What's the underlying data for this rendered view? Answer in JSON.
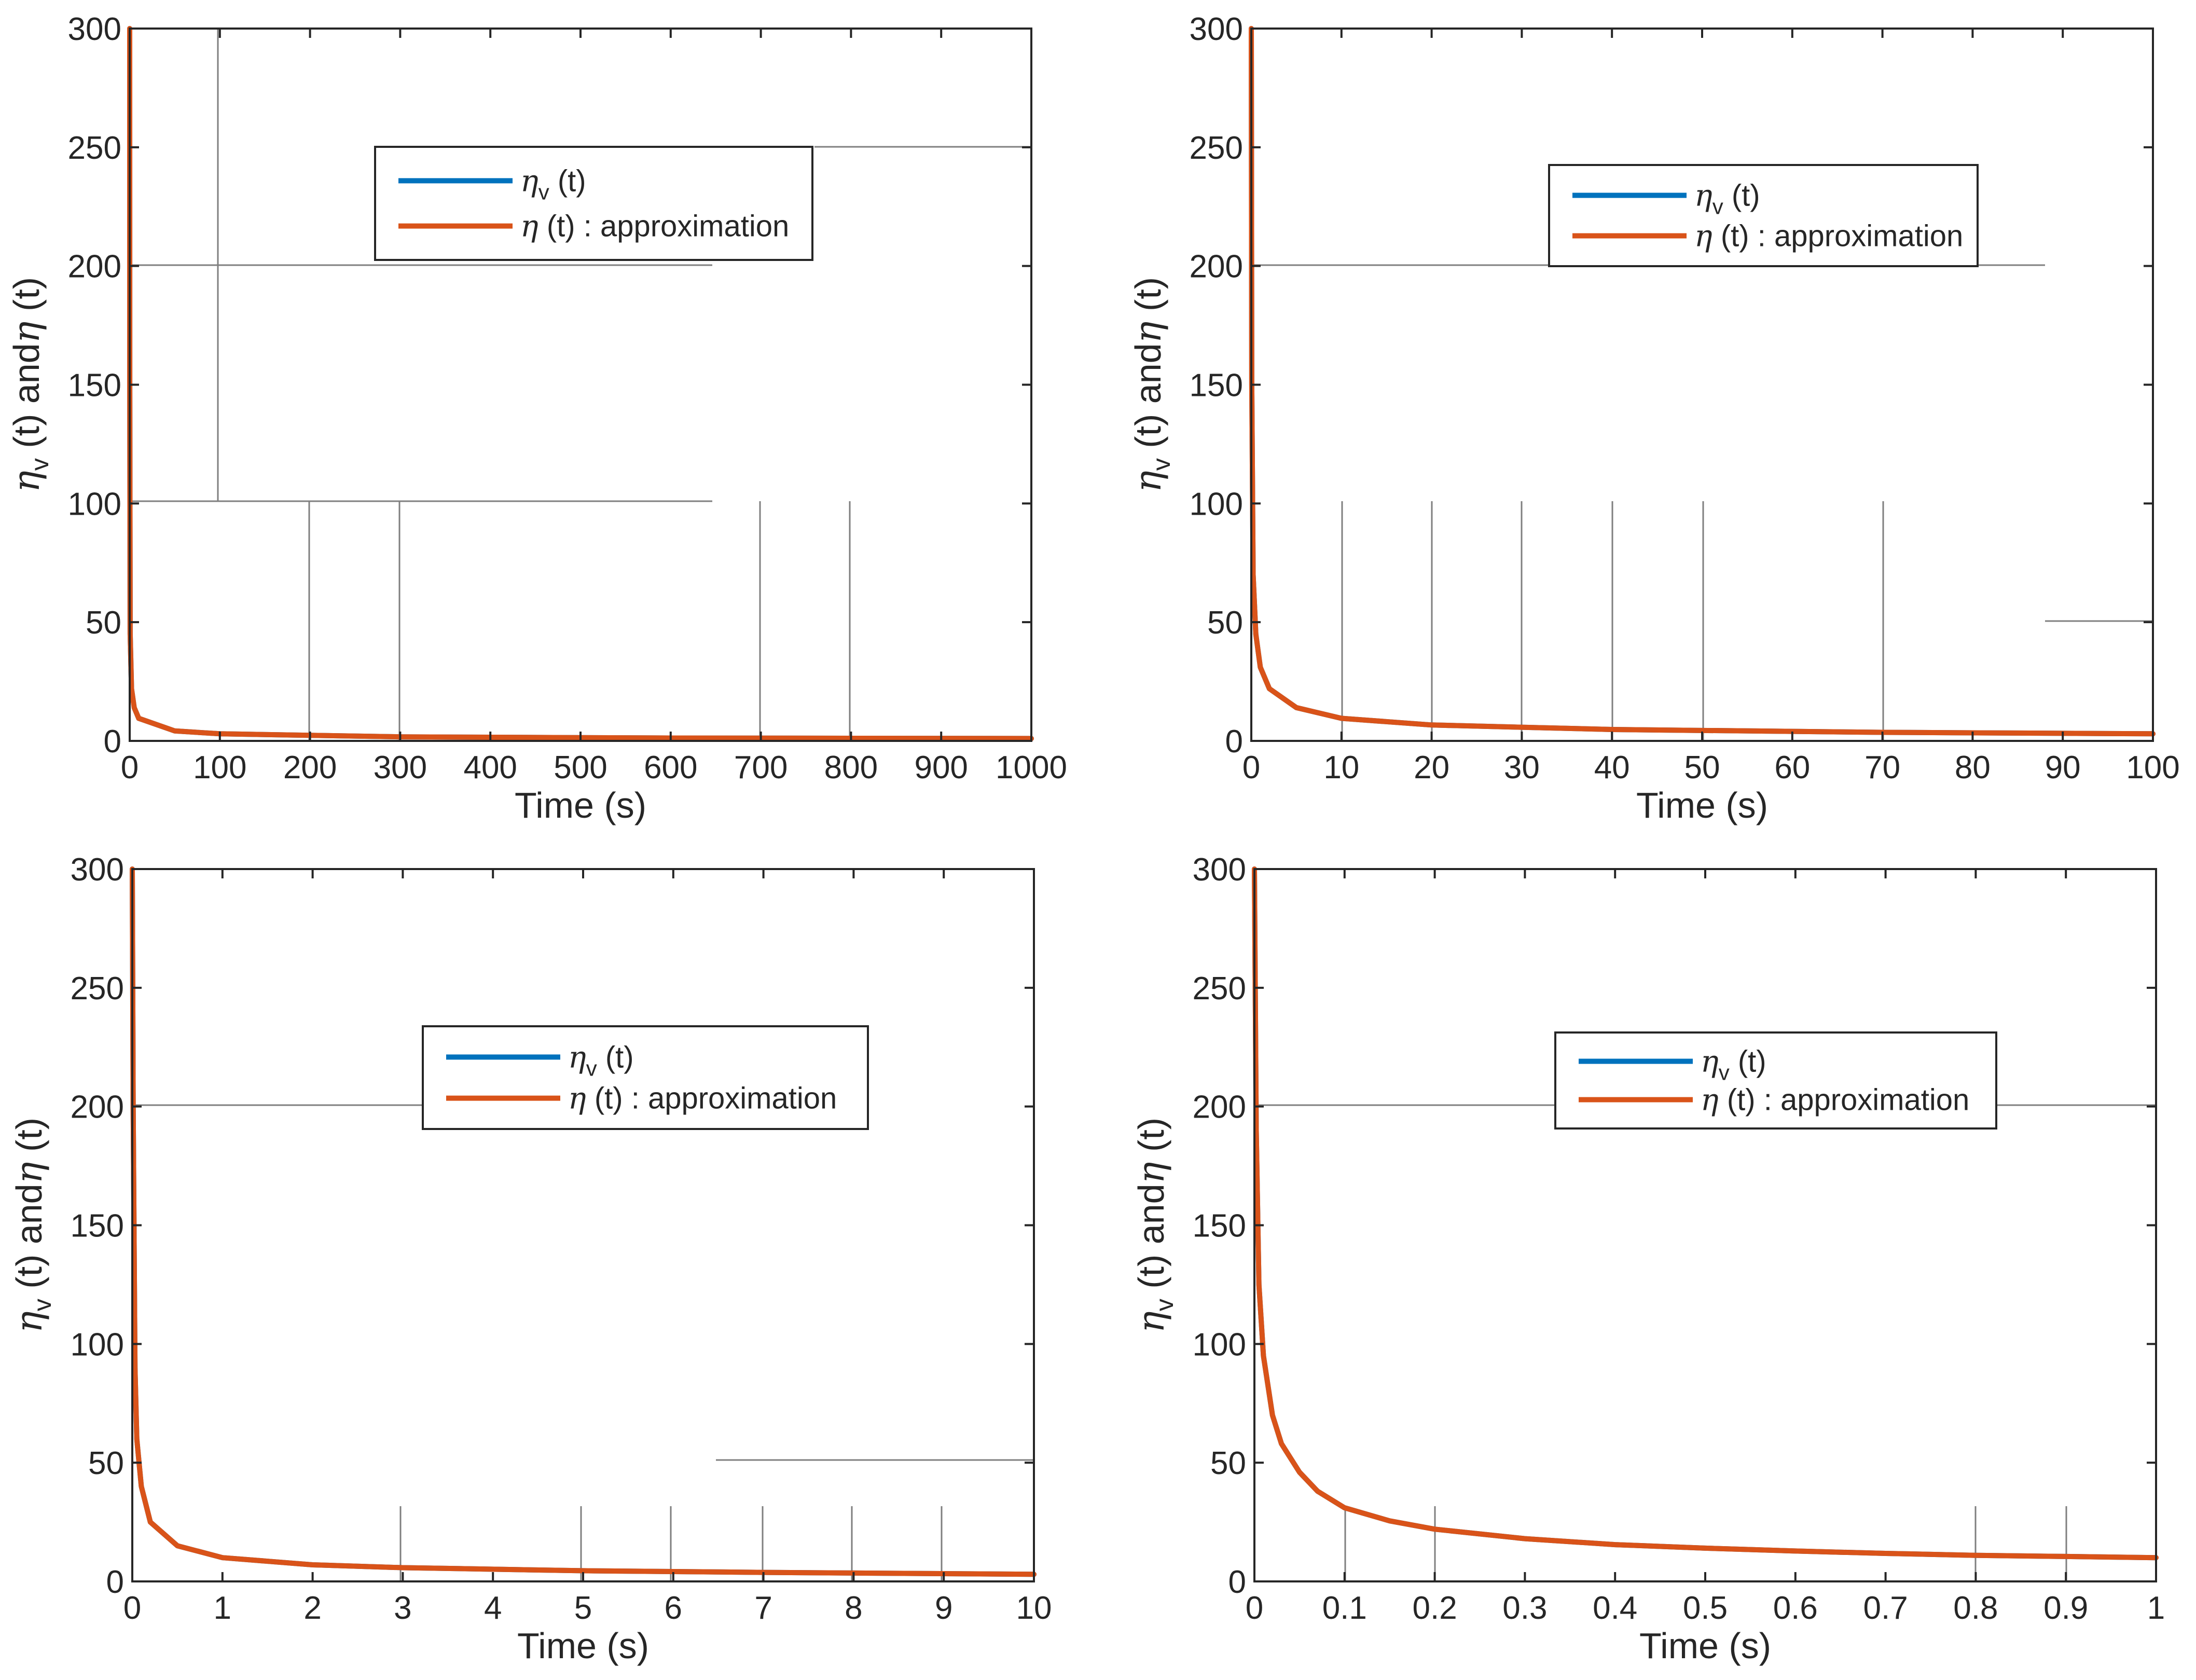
{
  "colors": {
    "eta_v": "#0072BD",
    "eta": "#D95319",
    "axis": "#262626",
    "grid": "#7f7f7f"
  },
  "chart_data": [
    {
      "type": "line",
      "panel": "top-left",
      "xlabel": "Time (s)",
      "ylabel": {
        "sym1": "η",
        "sub": "v",
        "mid": " (t) and",
        "sym2": "η",
        "end": " (t)"
      },
      "xlim": [
        0,
        1000
      ],
      "ylim": [
        0,
        300
      ],
      "xticks": [
        0,
        100,
        200,
        300,
        400,
        500,
        600,
        700,
        800,
        900,
        1000
      ],
      "yticks": [
        0,
        50,
        100,
        150,
        200,
        250,
        300
      ],
      "legend": {
        "placement": "top-center",
        "entries": [
          {
            "sym": "η",
            "sub": "v",
            "text": " (t)"
          },
          {
            "sym": "η",
            "sub": "",
            "text": " (t) : approximation"
          }
        ]
      },
      "series": [
        {
          "name": "eta_v(t)",
          "x": [
            0,
            0.05,
            0.5,
            2,
            5,
            10,
            50,
            100,
            300,
            600,
            1000
          ],
          "values": [
            300,
            150,
            45,
            22,
            14,
            9.5,
            4.2,
            3,
            1.7,
            1.2,
            1
          ]
        },
        {
          "name": "eta(t) : approximation",
          "x": [
            0,
            0.05,
            0.5,
            2,
            5,
            10,
            50,
            100,
            300,
            600,
            1000
          ],
          "values": [
            300,
            150,
            45,
            22,
            14,
            9.5,
            4.2,
            3,
            1.7,
            1.2,
            1
          ]
        }
      ]
    },
    {
      "type": "line",
      "panel": "top-right",
      "xlabel": "Time (s)",
      "ylabel": {
        "sym1": "η",
        "sub": "v",
        "mid": " (t) and",
        "sym2": "η",
        "end": " (t)"
      },
      "xlim": [
        0,
        100
      ],
      "ylim": [
        0,
        300
      ],
      "xticks": [
        0,
        10,
        20,
        30,
        40,
        50,
        60,
        70,
        80,
        90,
        100
      ],
      "yticks": [
        0,
        50,
        100,
        150,
        200,
        250,
        300
      ],
      "legend": {
        "placement": "top-center",
        "entries": [
          {
            "sym": "η",
            "sub": "v",
            "text": " (t)"
          },
          {
            "sym": "η",
            "sub": "",
            "text": " (t) : approximation"
          }
        ]
      },
      "series": [
        {
          "name": "eta_v(t)",
          "x": [
            0,
            0.05,
            0.2,
            0.5,
            1,
            2,
            5,
            10,
            20,
            40,
            70,
            100
          ],
          "values": [
            300,
            150,
            70,
            45,
            31,
            22,
            14,
            9.5,
            6.7,
            4.8,
            3.6,
            3
          ]
        },
        {
          "name": "eta(t) : approximation",
          "x": [
            0,
            0.05,
            0.2,
            0.5,
            1,
            2,
            5,
            10,
            20,
            40,
            70,
            100
          ],
          "values": [
            300,
            150,
            70,
            45,
            31,
            22,
            14,
            9.5,
            6.7,
            4.8,
            3.6,
            3
          ]
        }
      ]
    },
    {
      "type": "line",
      "panel": "bottom-left",
      "xlabel": "Time (s)",
      "ylabel": {
        "sym1": "η",
        "sub": "v",
        "mid": " (t) and",
        "sym2": "η",
        "end": " (t)"
      },
      "xlim": [
        0,
        10
      ],
      "ylim": [
        0,
        300
      ],
      "xticks": [
        0,
        1,
        2,
        3,
        4,
        5,
        6,
        7,
        8,
        9,
        10
      ],
      "yticks": [
        0,
        50,
        100,
        150,
        200,
        250,
        300
      ],
      "legend": {
        "placement": "top-center",
        "entries": [
          {
            "sym": "η",
            "sub": "v",
            "text": " (t)"
          },
          {
            "sym": "η",
            "sub": "",
            "text": " (t) : approximation"
          }
        ]
      },
      "series": [
        {
          "name": "eta_v(t)",
          "x": [
            0,
            0.01,
            0.03,
            0.05,
            0.1,
            0.2,
            0.5,
            1,
            2,
            3,
            5,
            7,
            10
          ],
          "values": [
            300,
            200,
            90,
            60,
            40,
            25,
            15,
            10,
            7,
            5.8,
            4.5,
            3.8,
            3
          ]
        },
        {
          "name": "eta(t) : approximation",
          "x": [
            0,
            0.01,
            0.03,
            0.05,
            0.1,
            0.2,
            0.5,
            1,
            2,
            3,
            5,
            7,
            10
          ],
          "values": [
            300,
            200,
            90,
            60,
            40,
            25,
            15,
            10,
            7,
            5.8,
            4.5,
            3.8,
            3
          ]
        }
      ]
    },
    {
      "type": "line",
      "panel": "bottom-right",
      "xlabel": "Time (s)",
      "ylabel": {
        "sym1": "η",
        "sub": "v",
        "mid": " (t) and",
        "sym2": "η",
        "end": " (t)"
      },
      "xlim": [
        0,
        1
      ],
      "ylim": [
        0,
        300
      ],
      "xticks": [
        0,
        0.1,
        0.2,
        0.3,
        0.4,
        0.5,
        0.6,
        0.7,
        0.8,
        0.9,
        1
      ],
      "yticks": [
        0,
        50,
        100,
        150,
        200,
        250,
        300
      ],
      "legend": {
        "placement": "top-center",
        "entries": [
          {
            "sym": "η",
            "sub": "v",
            "text": " (t)"
          },
          {
            "sym": "η",
            "sub": "",
            "text": " (t) : approximation"
          }
        ]
      },
      "series": [
        {
          "name": "eta_v(t)",
          "x": [
            0,
            0.002,
            0.005,
            0.01,
            0.02,
            0.03,
            0.05,
            0.07,
            0.1,
            0.15,
            0.2,
            0.3,
            0.4,
            0.5,
            0.6,
            0.7,
            0.8,
            0.9,
            1
          ],
          "values": [
            300,
            190,
            125,
            95,
            70,
            58,
            46,
            38,
            31,
            25.5,
            22,
            18,
            15.5,
            14,
            12.8,
            11.8,
            11,
            10.5,
            10
          ]
        },
        {
          "name": "eta(t) : approximation",
          "x": [
            0,
            0.002,
            0.005,
            0.01,
            0.02,
            0.03,
            0.05,
            0.07,
            0.1,
            0.15,
            0.2,
            0.3,
            0.4,
            0.5,
            0.6,
            0.7,
            0.8,
            0.9,
            1
          ],
          "values": [
            300,
            190,
            125,
            95,
            70,
            58,
            46,
            38,
            31,
            25.5,
            22,
            18,
            15.5,
            14,
            12.8,
            11.8,
            11,
            10.5,
            10
          ]
        }
      ]
    }
  ]
}
